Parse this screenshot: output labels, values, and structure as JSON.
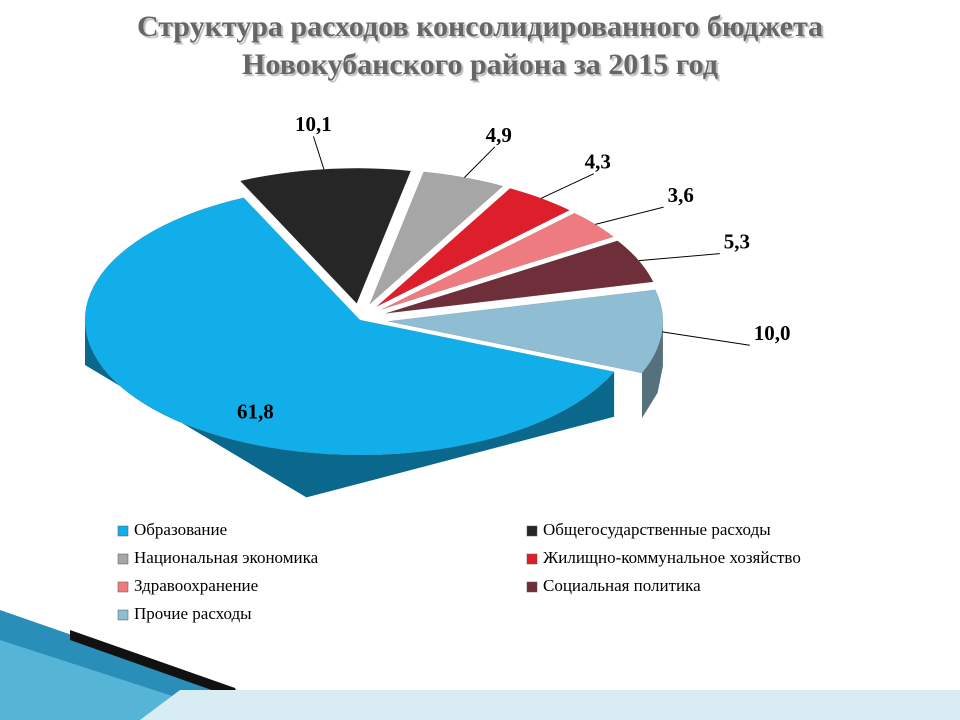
{
  "chart_data": {
    "type": "pie",
    "title": "Структура расходов консолидированного бюджета Новокубанского района за 2015 год",
    "categories": [
      "Образование",
      "Общегосударственные расходы",
      "Национальная экономика",
      "Жилищно-коммунальное хозяйство",
      "Здравоохранение",
      "Социальная политика",
      "Прочие расходы"
    ],
    "values": [
      61.8,
      10.1,
      4.9,
      4.3,
      3.6,
      5.3,
      10.0
    ],
    "value_labels": [
      "61,8",
      "10,1",
      "4,9",
      "4,3",
      "3,6",
      "5,3",
      "10,0"
    ],
    "colors": [
      "#12aeea",
      "#262626",
      "#a6a6a6",
      "#dc1f2a",
      "#ee7b80",
      "#6e2f3b",
      "#8fbdd3"
    ],
    "legend": "bottom"
  }
}
